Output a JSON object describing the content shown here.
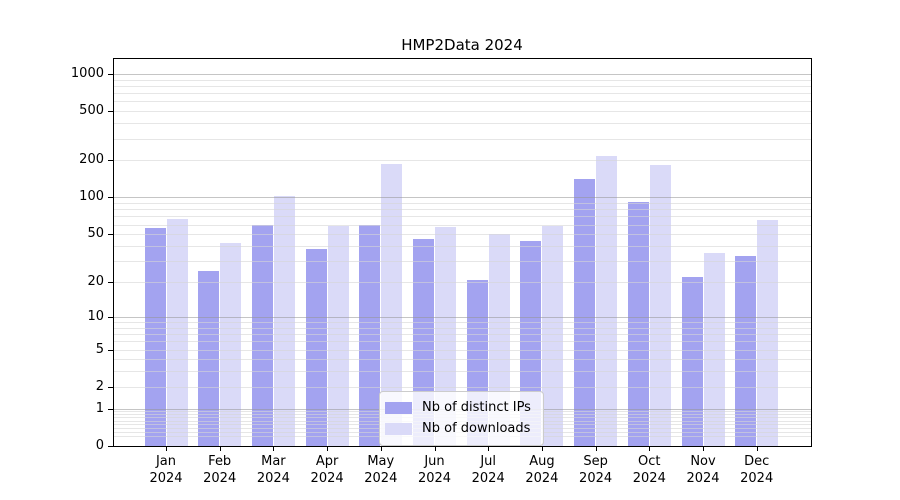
{
  "title": "HMP2Data 2024",
  "chart_data": {
    "type": "bar",
    "title": "HMP2Data 2024",
    "yscale": "log10(1+y)",
    "grid": true,
    "categories": [
      "Jan",
      "Feb",
      "Mar",
      "Apr",
      "May",
      "Jun",
      "Jul",
      "Aug",
      "Sep",
      "Oct",
      "Nov",
      "Dec"
    ],
    "x_year": "2024",
    "series": [
      {
        "name": "Nb of distinct IPs",
        "color": "#a3a3f0",
        "values": [
          56,
          25,
          60,
          38,
          60,
          46,
          21,
          44,
          140,
          92,
          22,
          33
        ]
      },
      {
        "name": "Nb of downloads",
        "color": "#dadaf8",
        "values": [
          67,
          42,
          103,
          59,
          188,
          57,
          50,
          58,
          217,
          184,
          35,
          66
        ]
      }
    ],
    "y_tick_labels": [
      0,
      1,
      2,
      5,
      10,
      20,
      50,
      100,
      200,
      500,
      1000
    ],
    "major_gridlines": [
      1,
      10,
      100,
      1000
    ],
    "ylim": [
      0,
      1320
    ],
    "legend_position": "lower center",
    "colors": {
      "background": "#ffffff",
      "axis": "#000000",
      "major_grid": "#b5b5b5",
      "minor_grid": "#e5e5e5"
    }
  }
}
